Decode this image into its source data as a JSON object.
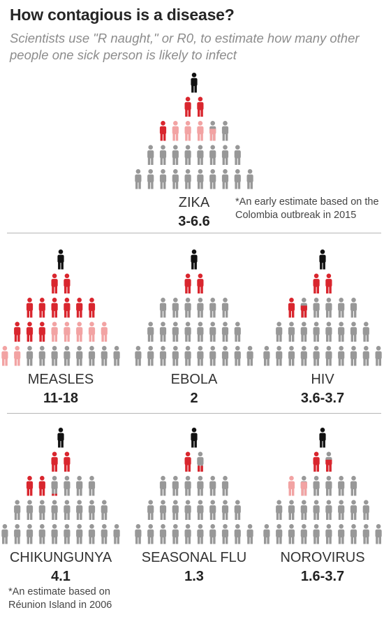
{
  "header": {
    "title": "How contagious is a disease?",
    "subtitle": "Scientists use \"R naught,\" or R0, to estimate how many other people one sick person is likely to infect"
  },
  "colors": {
    "source": "#111111",
    "infected": "#d9262e",
    "possible": "#f2a3a3",
    "uninfected": "#989898"
  },
  "notes": {
    "zika": "*An early estimate based on the Colombia outbreak in 2015",
    "chikungunya": "*An estimate based on Réunion Island in 2006"
  },
  "chart_data": {
    "type": "icon-pyramid",
    "row_sizes": [
      1,
      2,
      6,
      8,
      10
    ],
    "diseases": [
      {
        "name": "ZIKA",
        "value_label": "3-6.6",
        "r0_low": 3,
        "r0_high": 6.6
      },
      {
        "name": "MEASLES",
        "value_label": "11-18",
        "r0_low": 11,
        "r0_high": 18
      },
      {
        "name": "EBOLA",
        "value_label": "2",
        "r0_low": 2,
        "r0_high": 2
      },
      {
        "name": "HIV",
        "value_label": "3.6-3.7",
        "r0_low": 3.6,
        "r0_high": 3.7
      },
      {
        "name": "CHIKUNGUNYA",
        "value_label": "4.1",
        "r0_low": 4.1,
        "r0_high": 4.1
      },
      {
        "name": "SEASONAL FLU",
        "value_label": "1.3",
        "r0_low": 1.3,
        "r0_high": 1.3
      },
      {
        "name": "NOROVIRUS",
        "value_label": "1.6-3.7",
        "r0_low": 1.6,
        "r0_high": 3.7
      }
    ]
  }
}
